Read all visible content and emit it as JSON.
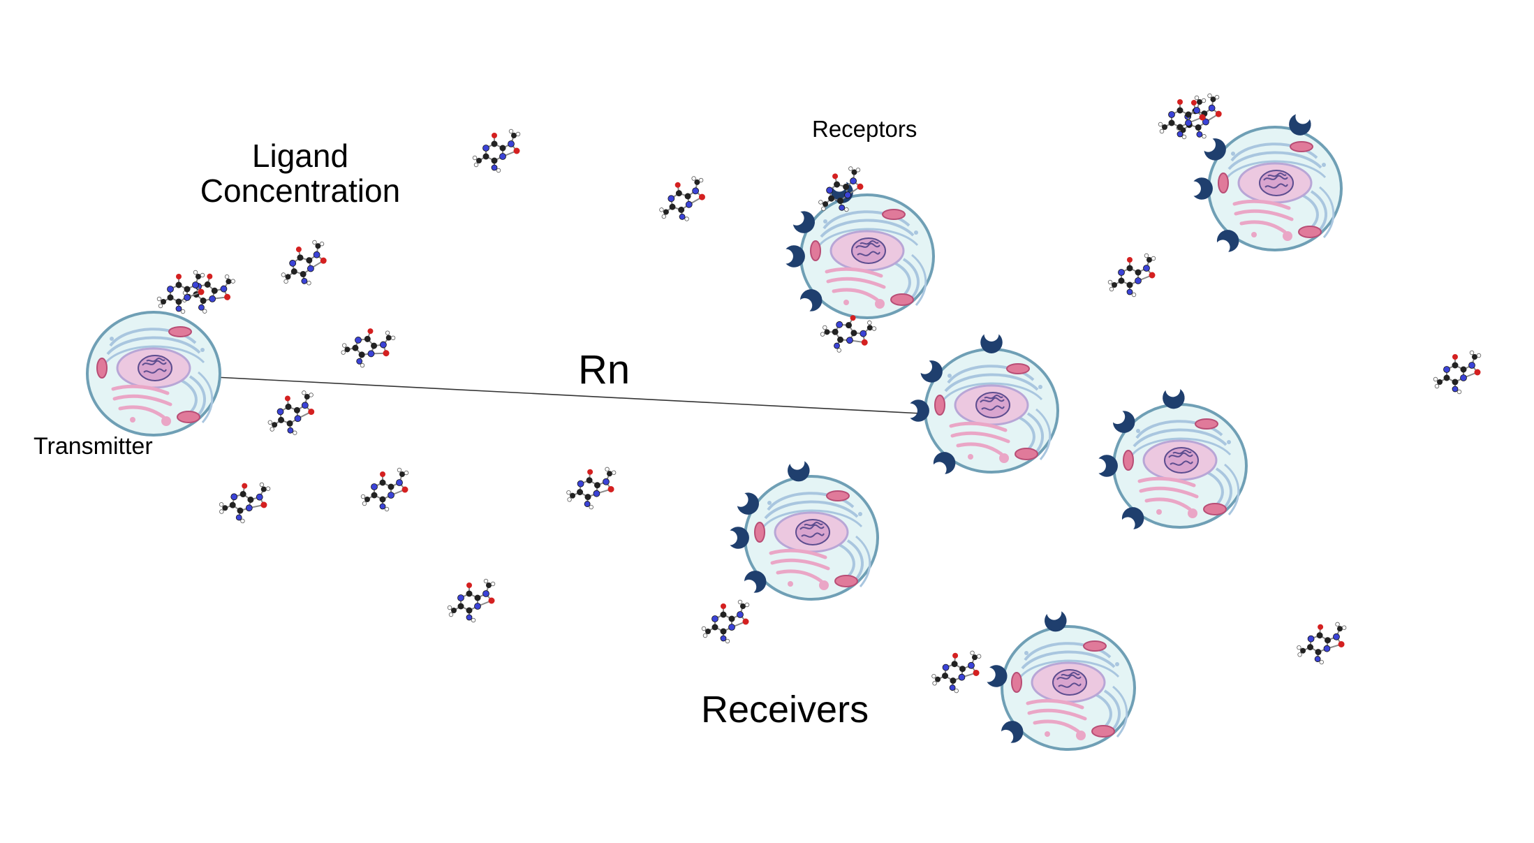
{
  "labels": {
    "ligand_line1": "Ligand",
    "ligand_line2": "Concentration",
    "receptors": "Receptors",
    "transmitter": "Transmitter",
    "rn": "Rn",
    "receivers": "Receivers"
  },
  "colors": {
    "cell_membrane": "#6f9fb5",
    "cell_fill": "#e4f4f5",
    "nucleus": "#e6b9d8",
    "chromatin": "#5c4d8f",
    "er": "#a9c6df",
    "mitochondria": "#e07a9a",
    "golgi": "#eaa6c6",
    "receptor": "#1f3f6e",
    "atom_carbon": "#222222",
    "atom_nitrogen": "#3b43d6",
    "atom_oxygen": "#d42020",
    "atom_hydrogen": "#ffffff",
    "line": "#333333"
  },
  "icons": {
    "cell": "cell-icon",
    "receptor": "receptor-icon",
    "ligand": "ligand-molecule-icon"
  },
  "counts": {
    "receiver_cells": 6,
    "ligand_molecules": 20
  }
}
